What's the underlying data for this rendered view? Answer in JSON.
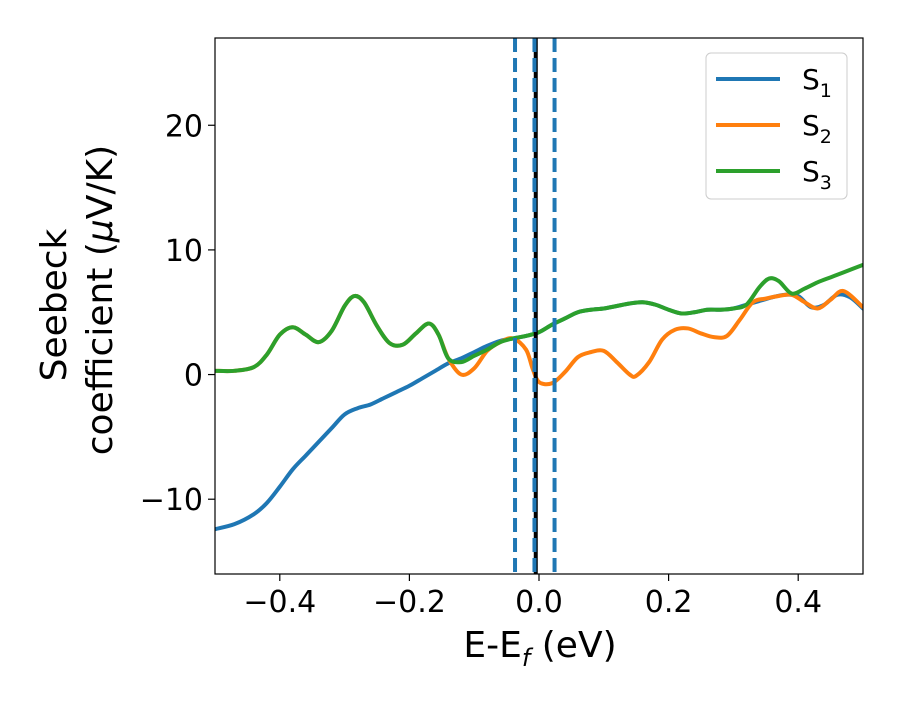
{
  "chart_data": {
    "type": "line",
    "title": "",
    "xlabel": "E-E",
    "xlabel_sub": "f",
    "xlabel_unit": " (eV)",
    "ylabel_line1": "Seebeck",
    "ylabel_line2": "coefficient  (",
    "ylabel_mu": "μ",
    "ylabel_unit": "V/K)",
    "xlim": [
      -0.5,
      0.5
    ],
    "ylim": [
      -16,
      27
    ],
    "xticks": [
      -0.4,
      -0.2,
      0.0,
      0.2,
      0.4
    ],
    "xtick_labels": [
      "−0.4",
      "−0.2",
      "0.0",
      "0.2",
      "0.4"
    ],
    "yticks": [
      -10,
      0,
      10,
      20
    ],
    "ytick_labels": [
      "−10",
      "0",
      "10",
      "20"
    ],
    "grid": false,
    "legend_position": "top-right",
    "vlines": [
      {
        "x": -0.005,
        "style": "solid",
        "color": "#000000"
      },
      {
        "x": -0.037,
        "style": "dashed",
        "color": "#1f77b4"
      },
      {
        "x": -0.007,
        "style": "dashed",
        "color": "#1f77b4"
      },
      {
        "x": 0.024,
        "style": "dashed",
        "color": "#1f77b4"
      }
    ],
    "series": [
      {
        "name": "S",
        "sub": "1",
        "color": "#1f77b4",
        "x": [
          -0.5,
          -0.47,
          -0.44,
          -0.42,
          -0.4,
          -0.38,
          -0.36,
          -0.34,
          -0.32,
          -0.3,
          -0.28,
          -0.26,
          -0.24,
          -0.22,
          -0.2,
          -0.18,
          -0.16,
          -0.14,
          -0.12,
          -0.1,
          -0.08,
          -0.06,
          -0.04,
          -0.02,
          0.0,
          0.02,
          0.04,
          0.06,
          0.08,
          0.1,
          0.12,
          0.14,
          0.16,
          0.18,
          0.2,
          0.22,
          0.24,
          0.26,
          0.28,
          0.3,
          0.32,
          0.34,
          0.36,
          0.38,
          0.4,
          0.42,
          0.44,
          0.46,
          0.48,
          0.5
        ],
        "values": [
          -12.4,
          -12.0,
          -11.2,
          -10.3,
          -9.0,
          -7.6,
          -6.5,
          -5.4,
          -4.3,
          -3.2,
          -2.7,
          -2.4,
          -1.9,
          -1.4,
          -0.9,
          -0.3,
          0.3,
          0.9,
          1.3,
          1.8,
          2.3,
          2.7,
          2.9,
          3.1,
          3.4,
          4.0,
          4.5,
          5.0,
          5.2,
          5.3,
          5.5,
          5.7,
          5.8,
          5.6,
          5.2,
          4.9,
          5.0,
          5.2,
          5.2,
          5.3,
          5.6,
          5.9,
          6.2,
          6.4,
          6.3,
          5.4,
          5.6,
          6.4,
          6.2,
          5.3
        ]
      },
      {
        "name": "S",
        "sub": "2",
        "color": "#ff7f0e",
        "x": [
          -0.5,
          -0.47,
          -0.44,
          -0.42,
          -0.4,
          -0.38,
          -0.36,
          -0.34,
          -0.32,
          -0.3,
          -0.285,
          -0.27,
          -0.25,
          -0.23,
          -0.21,
          -0.19,
          -0.17,
          -0.155,
          -0.14,
          -0.12,
          -0.1,
          -0.08,
          -0.06,
          -0.04,
          -0.02,
          -0.01,
          0.0,
          0.02,
          0.04,
          0.06,
          0.08,
          0.1,
          0.12,
          0.14,
          0.15,
          0.17,
          0.19,
          0.21,
          0.23,
          0.25,
          0.27,
          0.29,
          0.31,
          0.33,
          0.35,
          0.37,
          0.39,
          0.41,
          0.43,
          0.45,
          0.47,
          0.5
        ],
        "values": [
          0.3,
          0.3,
          0.6,
          1.6,
          3.2,
          3.8,
          3.2,
          2.6,
          3.5,
          5.5,
          6.3,
          5.8,
          3.9,
          2.5,
          2.4,
          3.3,
          4.1,
          3.2,
          1.3,
          0.0,
          0.5,
          1.9,
          2.6,
          2.9,
          2.0,
          0.5,
          -0.6,
          -0.7,
          0.2,
          1.4,
          1.8,
          1.9,
          1.0,
          0.0,
          -0.1,
          1.0,
          2.8,
          3.6,
          3.7,
          3.3,
          3.0,
          3.1,
          4.4,
          5.8,
          6.1,
          6.3,
          6.4,
          5.8,
          5.3,
          6.0,
          6.7,
          5.4
        ]
      },
      {
        "name": "S",
        "sub": "3",
        "color": "#2ca02c",
        "x": [
          -0.5,
          -0.47,
          -0.44,
          -0.42,
          -0.4,
          -0.38,
          -0.36,
          -0.34,
          -0.32,
          -0.3,
          -0.285,
          -0.27,
          -0.25,
          -0.23,
          -0.21,
          -0.19,
          -0.17,
          -0.155,
          -0.14,
          -0.12,
          -0.1,
          -0.08,
          -0.06,
          -0.04,
          -0.02,
          0.0,
          0.02,
          0.04,
          0.06,
          0.08,
          0.1,
          0.12,
          0.14,
          0.16,
          0.18,
          0.2,
          0.22,
          0.24,
          0.26,
          0.28,
          0.3,
          0.32,
          0.34,
          0.355,
          0.37,
          0.39,
          0.41,
          0.43,
          0.45,
          0.47,
          0.5
        ],
        "values": [
          0.3,
          0.3,
          0.6,
          1.6,
          3.2,
          3.8,
          3.2,
          2.6,
          3.5,
          5.5,
          6.3,
          5.8,
          3.9,
          2.5,
          2.4,
          3.3,
          4.1,
          3.2,
          1.3,
          1.0,
          1.5,
          2.0,
          2.6,
          2.9,
          3.1,
          3.4,
          4.0,
          4.5,
          5.0,
          5.2,
          5.3,
          5.5,
          5.7,
          5.8,
          5.6,
          5.2,
          4.9,
          5.0,
          5.2,
          5.2,
          5.3,
          5.6,
          7.0,
          7.7,
          7.5,
          6.5,
          6.9,
          7.4,
          7.8,
          8.2,
          8.8
        ]
      }
    ]
  }
}
